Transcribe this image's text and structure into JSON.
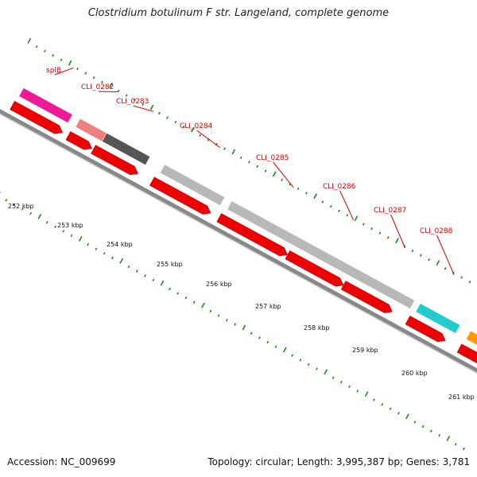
{
  "map": {
    "title": "Clostridium botulinum F str. Langeland, complete genome",
    "accession": "Accession: NC_009699",
    "summary": "Topology: circular; Length: 3,995,387 bp; Genes: 3,781"
  },
  "scale": {
    "labels": [
      "252 kbp",
      "253 kbp",
      "254 kbp",
      "255 kbp",
      "256 kbp",
      "257 kbp",
      "258 kbp",
      "259 kbp",
      "260 kbp",
      "261 kbp"
    ]
  },
  "genes": [
    {
      "label": "splB",
      "color": "#ee1a97"
    },
    {
      "label": "CLI_0282",
      "color": "#ee8080"
    },
    {
      "label": "CLI_0283",
      "color": "#555555"
    },
    {
      "label": "CLI_0284",
      "color": "#b8b8b8"
    },
    {
      "label": "CLI_0285",
      "color": "#b8b8b8"
    },
    {
      "label": "CLI_0286",
      "color": "#b8b8b8"
    },
    {
      "label": "CLI_0287",
      "color": "#b8b8b8"
    },
    {
      "label": "CLI_0288",
      "color": "#22cccc"
    },
    {
      "label": "",
      "color": "#ff9900"
    }
  ],
  "cds_color": "#ee0000"
}
